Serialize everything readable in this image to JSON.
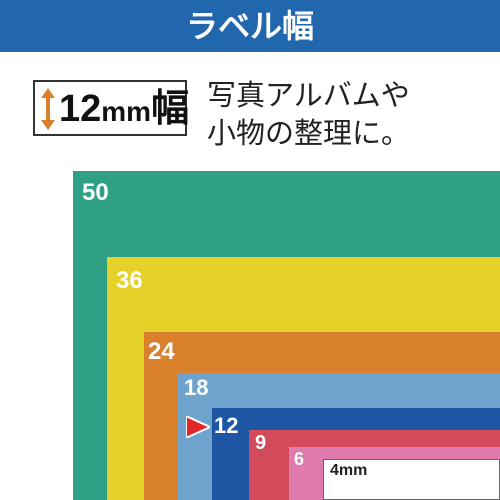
{
  "header": {
    "title": "ラベル幅"
  },
  "badge": {
    "value": "12",
    "unit": "mm",
    "suffix": "幅"
  },
  "description": {
    "line1": "写真アルバムや",
    "line2": "小物の整理に。"
  },
  "tapes": [
    {
      "label": "50",
      "color": "#2f9f86"
    },
    {
      "label": "36",
      "color": "#e4d22b"
    },
    {
      "label": "24",
      "color": "#d9802c"
    },
    {
      "label": "18",
      "color": "#6ea3cd"
    },
    {
      "label": "12",
      "color": "#1f56a4",
      "marker": "red-triangle-icon"
    },
    {
      "label": "9",
      "color": "#d34a5a"
    },
    {
      "label": "6",
      "color": "#e07bb0"
    },
    {
      "label": "4mm",
      "color": "#ffffff"
    }
  ]
}
